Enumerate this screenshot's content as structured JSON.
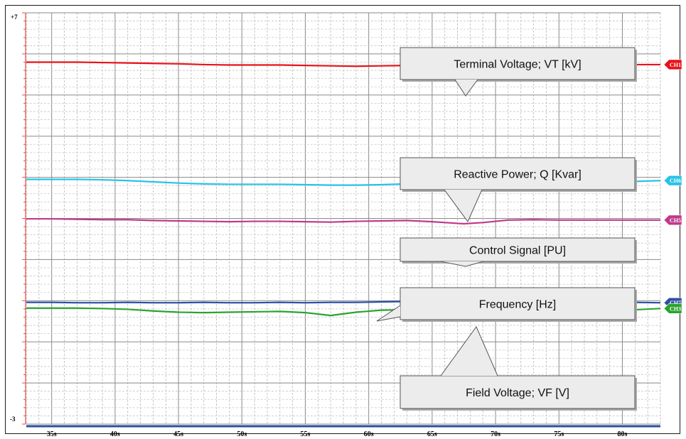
{
  "chart_data": {
    "type": "line",
    "x": [
      33,
      35,
      37,
      39,
      41,
      43,
      45,
      47,
      49,
      51,
      53,
      55,
      57,
      59,
      61,
      63,
      65,
      67,
      67.5,
      69,
      71,
      73,
      75,
      77,
      79,
      81,
      83
    ],
    "xlim": [
      33,
      83
    ],
    "x_ticks": [
      35,
      40,
      45,
      50,
      55,
      60,
      65,
      70,
      75,
      80
    ],
    "x_tick_labels": [
      "35s",
      "40s",
      "45s",
      "50s",
      "55s",
      "60s",
      "65s",
      "70s",
      "75s",
      "80s"
    ],
    "ylim": [
      -3,
      7
    ],
    "y_top_label": "+7",
    "y_bottom_label": "-3",
    "grid": true,
    "series": [
      {
        "name": "Terminal Voltage; VT  [kV]",
        "tag": "CH1",
        "color": "#e8121b",
        "values": [
          5.8,
          5.8,
          5.8,
          5.79,
          5.78,
          5.77,
          5.76,
          5.74,
          5.73,
          5.73,
          5.73,
          5.72,
          5.71,
          5.7,
          5.71,
          5.72,
          5.72,
          5.71,
          5.7,
          5.71,
          5.74,
          5.75,
          5.75,
          5.75,
          5.75,
          5.74,
          5.74
        ]
      },
      {
        "name": "Reactive Power; Q [Kvar]",
        "tag": "CH6",
        "color": "#27c3e6",
        "values": [
          2.95,
          2.95,
          2.95,
          2.94,
          2.92,
          2.89,
          2.86,
          2.84,
          2.83,
          2.83,
          2.83,
          2.82,
          2.81,
          2.81,
          2.82,
          2.84,
          2.85,
          2.83,
          2.82,
          2.83,
          2.87,
          2.88,
          2.89,
          2.89,
          2.89,
          2.9,
          2.92
        ]
      },
      {
        "name": "Control Signal  [PU]",
        "tag": "CH5",
        "color": "#c0398c",
        "values": [
          1.99,
          1.99,
          1.98,
          1.97,
          1.97,
          1.95,
          1.94,
          1.93,
          1.92,
          1.93,
          1.93,
          1.92,
          1.91,
          1.93,
          1.94,
          1.95,
          1.92,
          1.88,
          1.87,
          1.9,
          1.96,
          1.97,
          1.96,
          1.96,
          1.96,
          1.96,
          1.96
        ]
      },
      {
        "name": "Frequency [Hz]",
        "tag": "CH7",
        "color": "#2d4fa3",
        "values": [
          -0.04,
          -0.04,
          -0.05,
          -0.05,
          -0.04,
          -0.05,
          -0.05,
          -0.04,
          -0.05,
          -0.05,
          -0.04,
          -0.05,
          -0.04,
          -0.04,
          -0.03,
          -0.02,
          -0.02,
          -0.03,
          -0.04,
          -0.05,
          -0.04,
          -0.04,
          -0.05,
          -0.05,
          -0.04,
          -0.04,
          -0.05
        ]
      },
      {
        "name": "Field Voltage; VF  [V]",
        "tag": "CH3",
        "color": "#2aa32e",
        "values": [
          -0.18,
          -0.18,
          -0.18,
          -0.19,
          -0.21,
          -0.25,
          -0.28,
          -0.29,
          -0.28,
          -0.27,
          -0.26,
          -0.29,
          -0.36,
          -0.28,
          -0.23,
          -0.22,
          -0.27,
          -0.34,
          -0.35,
          -0.3,
          -0.21,
          -0.21,
          -0.23,
          -0.24,
          -0.23,
          -0.22,
          -0.19
        ]
      }
    ]
  }
}
